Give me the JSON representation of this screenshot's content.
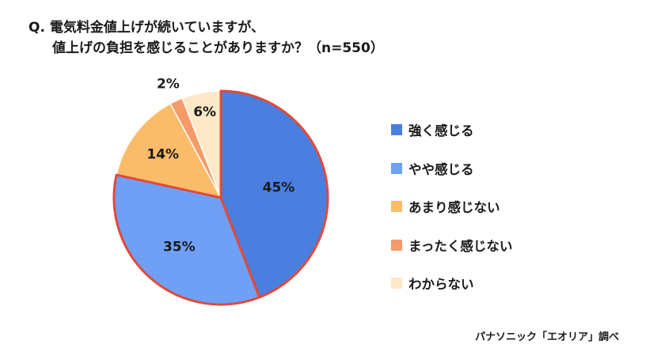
{
  "title_line1": "Q. 電気料金値上げが続いていますが、",
  "title_line2": "値上げの負担を感じることがありますか？（n=550）",
  "source": "パナソニック「エオリア」調べ",
  "chart_data": {
    "type": "pie",
    "title": "Q. 電気料金値上げが続いていますが、値上げの負担を感じることがありますか？（n=550）",
    "categories": [
      "強く感じる",
      "やや感じる",
      "あまり感じない",
      "まったく感じない",
      "わからない"
    ],
    "values": [
      45,
      35,
      14,
      2,
      6
    ],
    "labels": [
      "45%",
      "35%",
      "14%",
      "2%",
      "6%"
    ],
    "colors": [
      "#4a7fe0",
      "#6fa0f5",
      "#fbbc6a",
      "#f59b6a",
      "#fde8c8"
    ],
    "highlight": [
      "強く感じる",
      "やや感じる"
    ],
    "highlight_color": "#e04a3a",
    "legend_position": "right"
  }
}
